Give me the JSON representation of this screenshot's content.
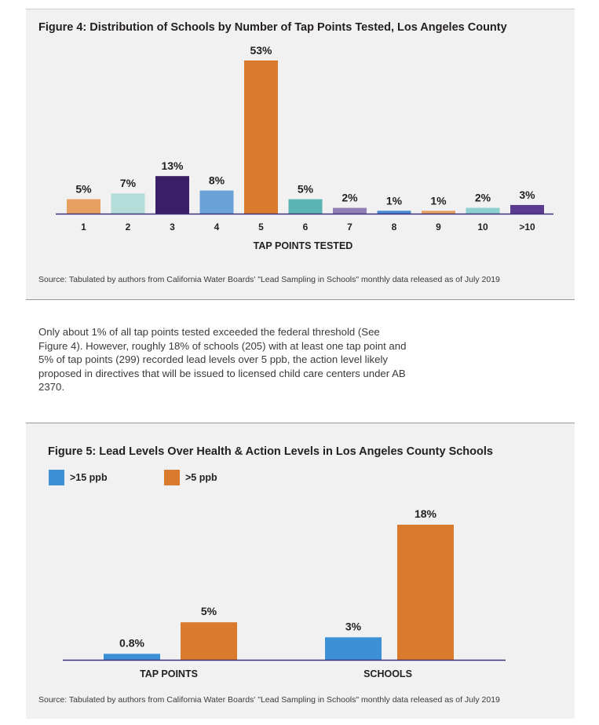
{
  "colors": {
    "panel_bg": "#f1f1f1",
    "axis": "#3b3276",
    "fig4_bars": [
      "#e8a060",
      "#b4dcd8",
      "#3b1f66",
      "#6aa2d6",
      "#d97a2c",
      "#5ab4b4",
      "#8f7db6",
      "#4a8ad4",
      "#e8a060",
      "#8ecfcf",
      "#5a3b8f"
    ],
    "fig5_series": [
      "#3d8fd6",
      "#d97a2c"
    ]
  },
  "figure4": {
    "title": "Figure 4: Distribution of Schools by Number of Tap Points Tested, Los Angeles County",
    "source": "Source: Tabulated by authors from California Water Boards' \"Lead Sampling in Schools\" monthly data released as of July 2019"
  },
  "body_text": "Only about 1% of all tap points tested exceeded the federal threshold (See Figure 4). However, roughly 18% of schools (205) with at least one tap point and 5% of tap points (299) recorded lead levels over 5 ppb, the action level likely proposed in directives that will be issued to licensed child care centers under AB 2370.",
  "figure5": {
    "title": "Figure 5: Lead Levels Over Health & Action Levels in Los Angeles County Schools",
    "source": "Source: Tabulated by authors from California Water Boards' \"Lead Sampling in Schools\" monthly data released as of July 2019"
  },
  "chart_data": [
    {
      "type": "bar",
      "title": "Figure 4: Distribution of Schools by Number of Tap Points Tested, Los Angeles County",
      "xlabel": "TAP POINTS TESTED",
      "ylabel": "",
      "categories": [
        "1",
        "2",
        "3",
        "4",
        "5",
        "6",
        "7",
        "8",
        "9",
        "10",
        ">10"
      ],
      "values": [
        5,
        7,
        13,
        8,
        53,
        5,
        2,
        1,
        1,
        2,
        3
      ],
      "data_labels": [
        "5%",
        "7%",
        "13%",
        "8%",
        "53%",
        "5%",
        "2%",
        "1%",
        "1%",
        "2%",
        "3%"
      ],
      "unit": "%",
      "ylim": [
        0,
        53
      ],
      "grid": false,
      "legend": "none"
    },
    {
      "type": "bar",
      "title": "Figure 5: Lead Levels Over Health & Action Levels in Los Angeles County Schools",
      "xlabel": "",
      "ylabel": "",
      "categories": [
        "TAP POINTS",
        "SCHOOLS"
      ],
      "series": [
        {
          "name": ">15 ppb",
          "values": [
            0.8,
            3
          ],
          "data_labels": [
            "0.8%",
            "3%"
          ]
        },
        {
          "name": ">5 ppb",
          "values": [
            5,
            18
          ],
          "data_labels": [
            "5%",
            "18%"
          ]
        }
      ],
      "unit": "%",
      "ylim": [
        0,
        18
      ],
      "grid": false,
      "legend": "top-left"
    }
  ]
}
